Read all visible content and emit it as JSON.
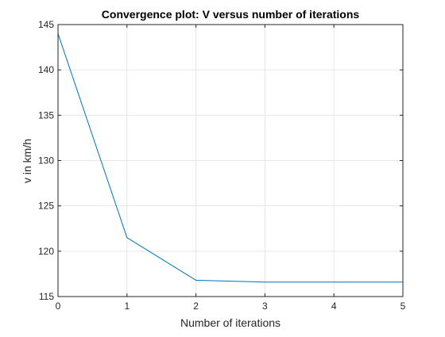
{
  "chart_data": {
    "type": "line",
    "title": "Convergence plot: V versus number of iterations",
    "xlabel": "Number of iterations",
    "ylabel": "v in km/h",
    "x": [
      0,
      1,
      2,
      3,
      4,
      5
    ],
    "series": [
      {
        "values": [
          144,
          121.5,
          116.8,
          116.6,
          116.6,
          116.6
        ]
      }
    ],
    "xlim": [
      0,
      5
    ],
    "ylim": [
      115,
      145
    ],
    "xticks": [
      "0",
      "1",
      "2",
      "3",
      "4",
      "5"
    ],
    "yticks": [
      "115",
      "120",
      "125",
      "130",
      "135",
      "140",
      "145"
    ],
    "grid": true,
    "box": true,
    "line_color": "#0072BD",
    "grid_color": "#E6E6E6",
    "axis_color": "#262626"
  }
}
